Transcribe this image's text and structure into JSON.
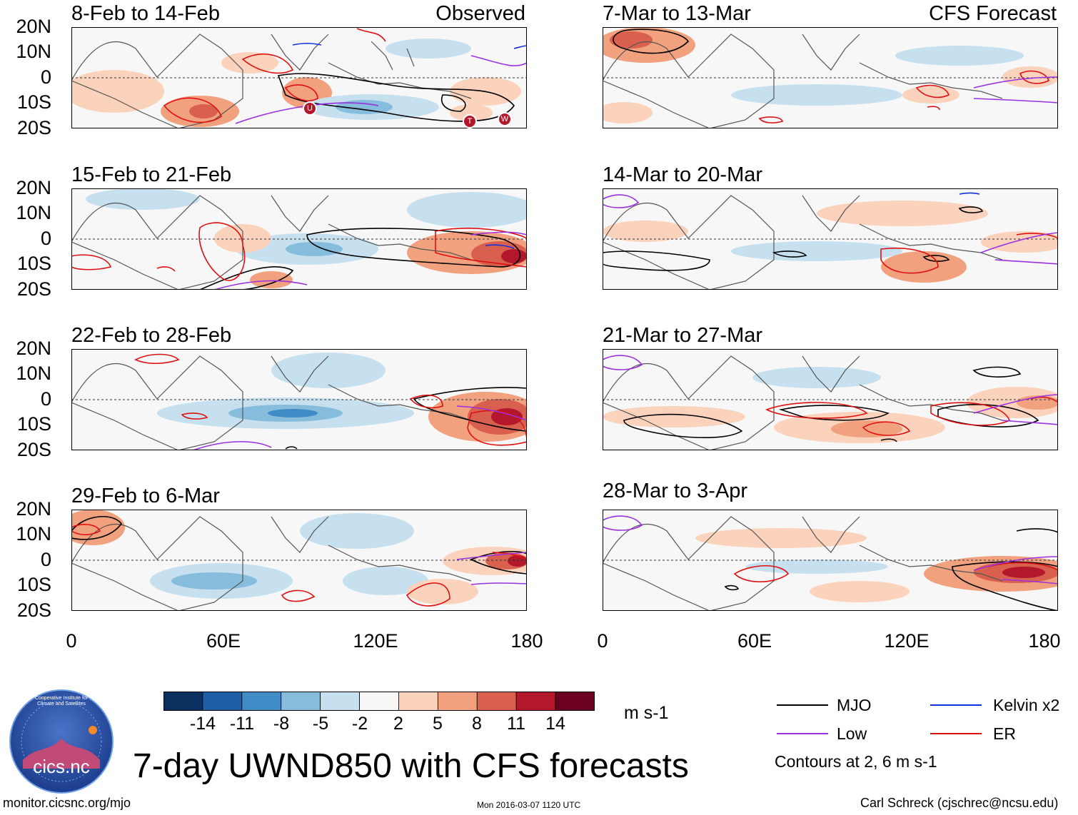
{
  "panels": [
    {
      "title": "8-Feb to 14-Feb",
      "tag": "Observed"
    },
    {
      "title": "15-Feb to 21-Feb",
      "tag": ""
    },
    {
      "title": "22-Feb to 28-Feb",
      "tag": ""
    },
    {
      "title": "29-Feb to 6-Mar",
      "tag": ""
    },
    {
      "title": "7-Mar to 13-Mar",
      "tag": "CFS Forecast"
    },
    {
      "title": "14-Mar to 20-Mar",
      "tag": ""
    },
    {
      "title": "21-Mar to 27-Mar",
      "tag": ""
    },
    {
      "title": "28-Mar to 3-Apr",
      "tag": ""
    }
  ],
  "lat_labels": [
    "20N",
    "10N",
    "0",
    "10S",
    "20S"
  ],
  "lon_labels": [
    "0",
    "60E",
    "120E",
    "180"
  ],
  "storm_markers": [
    "U",
    "T",
    "W"
  ],
  "colorbar": {
    "colors": [
      "#0b2f5e",
      "#1f5fa8",
      "#3f8cc6",
      "#86bcdc",
      "#c7e0ef",
      "#f7f7f7",
      "#fbd3bd",
      "#f2a17f",
      "#d9604e",
      "#b3172b",
      "#6b0020"
    ],
    "labels": [
      "-14",
      "-11",
      "-8",
      "-5",
      "-2",
      "2",
      "5",
      "8",
      "11",
      "14"
    ],
    "units": "m s-1"
  },
  "legend": {
    "items": [
      {
        "label": "MJO",
        "color": "#000000"
      },
      {
        "label": "Kelvin x2",
        "color": "#1030e0"
      },
      {
        "label": "Low",
        "color": "#9a30e0"
      },
      {
        "label": "ER",
        "color": "#e01010"
      }
    ],
    "contours_note": "Contours at 2, 6 m s-1"
  },
  "logo": {
    "text": "cics.nc",
    "ring_text": "Cooperative Institute for Climate and Satellites"
  },
  "main_title": "7-day UWND850 with CFS forecasts",
  "footer": {
    "url": "monitor.cicsnc.org/mjo",
    "timestamp": "Mon 2016-03-07 1120 UTC",
    "author": "Carl Schreck (cjschrec@ncsu.edu)"
  }
}
